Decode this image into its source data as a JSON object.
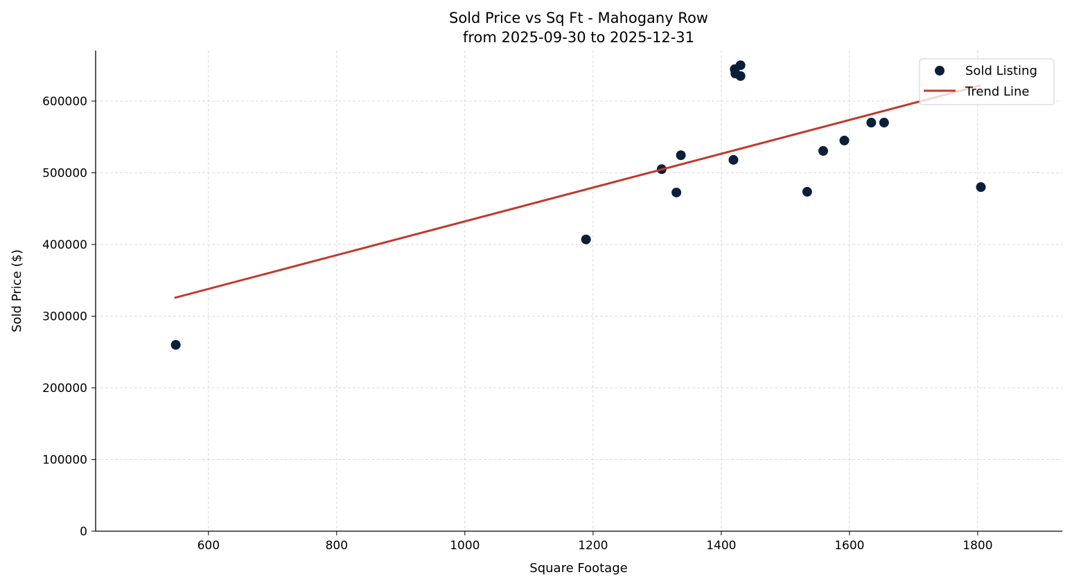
{
  "chart_data": {
    "type": "scatter",
    "title": "Sold Price vs Sq Ft - Mahogany Row",
    "subtitle": "from 2025-09-30 to 2025-12-31",
    "xlabel": "Square Footage",
    "ylabel": "Sold Price ($)",
    "xlim": [
      424,
      1932
    ],
    "ylim": [
      0,
      670500
    ],
    "xticks": [
      600,
      800,
      1000,
      1200,
      1400,
      1600,
      1800
    ],
    "yticks": [
      0,
      100000,
      200000,
      300000,
      400000,
      500000,
      600000
    ],
    "grid": true,
    "legend_placement": "top-right",
    "series": [
      {
        "name": "Sold Listing",
        "type": "scatter",
        "color": "#0b1f3a",
        "points": [
          [
            549,
            260000
          ],
          [
            1189,
            407000
          ],
          [
            1307,
            505000
          ],
          [
            1330,
            472500
          ],
          [
            1337,
            524500
          ],
          [
            1419,
            518000
          ],
          [
            1421,
            644500
          ],
          [
            1422,
            638500
          ],
          [
            1430,
            650000
          ],
          [
            1430,
            635000
          ],
          [
            1534,
            473500
          ],
          [
            1559,
            530500
          ],
          [
            1592,
            545000
          ],
          [
            1634,
            570000
          ],
          [
            1654,
            570000
          ],
          [
            1805,
            480000
          ]
        ]
      },
      {
        "name": "Trend Line",
        "type": "line",
        "color": "#c0392b",
        "points": [
          [
            547,
            325500
          ],
          [
            1805,
            622000
          ]
        ]
      }
    ]
  }
}
